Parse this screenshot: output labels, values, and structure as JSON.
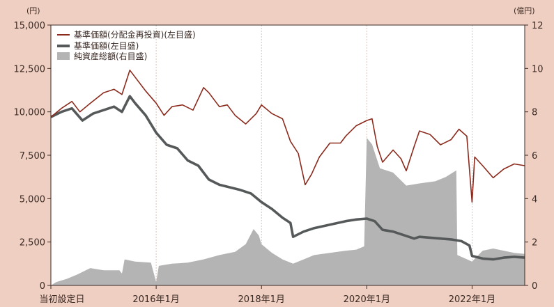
{
  "chart_data": {
    "type": "line",
    "left_unit": "(円)",
    "right_unit": "(億円)",
    "y_left": {
      "min": 0,
      "max": 15000,
      "ticks": [
        "0",
        "2,500",
        "5,000",
        "7,500",
        "10,000",
        "12,500",
        "15,000"
      ]
    },
    "y_right": {
      "min": 0,
      "max": 12,
      "ticks": [
        "0",
        "2",
        "4",
        "6",
        "8",
        "10",
        "12"
      ]
    },
    "x_range": [
      2014.0,
      2023.0
    ],
    "x_ticks": [
      {
        "x": 2014.0,
        "label": "当初設定日"
      },
      {
        "x": 2016.0,
        "label": "2016年1月"
      },
      {
        "x": 2018.0,
        "label": "2018年1月"
      },
      {
        "x": 2020.0,
        "label": "2020年1月"
      },
      {
        "x": 2022.0,
        "label": "2022年1月"
      }
    ],
    "legend": [
      "基準価額(分配金再投資)(左目盛)",
      "基準価額(左目盛)",
      "純資産総額(右目盛)"
    ],
    "series": [
      {
        "axis": "left",
        "color": "#8b2a1c",
        "points": [
          [
            2014.0,
            9700
          ],
          [
            2014.2,
            10200
          ],
          [
            2014.4,
            10600
          ],
          [
            2014.55,
            10000
          ],
          [
            2014.75,
            10500
          ],
          [
            2015.0,
            11100
          ],
          [
            2015.2,
            11300
          ],
          [
            2015.35,
            11000
          ],
          [
            2015.5,
            12400
          ],
          [
            2015.6,
            12000
          ],
          [
            2015.8,
            11200
          ],
          [
            2016.0,
            10500
          ],
          [
            2016.15,
            9800
          ],
          [
            2016.3,
            10300
          ],
          [
            2016.5,
            10400
          ],
          [
            2016.7,
            10100
          ],
          [
            2016.9,
            11400
          ],
          [
            2017.0,
            11100
          ],
          [
            2017.2,
            10300
          ],
          [
            2017.35,
            10400
          ],
          [
            2017.5,
            9800
          ],
          [
            2017.7,
            9300
          ],
          [
            2017.9,
            9900
          ],
          [
            2018.0,
            10400
          ],
          [
            2018.2,
            9900
          ],
          [
            2018.4,
            9600
          ],
          [
            2018.55,
            8300
          ],
          [
            2018.7,
            7600
          ],
          [
            2018.83,
            5800
          ],
          [
            2018.95,
            6400
          ],
          [
            2019.1,
            7400
          ],
          [
            2019.3,
            8200
          ],
          [
            2019.5,
            8200
          ],
          [
            2019.6,
            8600
          ],
          [
            2019.8,
            9200
          ],
          [
            2020.0,
            9500
          ],
          [
            2020.1,
            9600
          ],
          [
            2020.2,
            8000
          ],
          [
            2020.3,
            7100
          ],
          [
            2020.5,
            7800
          ],
          [
            2020.65,
            7300
          ],
          [
            2020.75,
            6600
          ],
          [
            2020.9,
            8000
          ],
          [
            2021.0,
            8900
          ],
          [
            2021.2,
            8700
          ],
          [
            2021.4,
            8100
          ],
          [
            2021.6,
            8400
          ],
          [
            2021.75,
            9000
          ],
          [
            2021.9,
            8600
          ],
          [
            2022.0,
            4800
          ],
          [
            2022.05,
            7400
          ],
          [
            2022.2,
            6900
          ],
          [
            2022.4,
            6200
          ],
          [
            2022.6,
            6700
          ],
          [
            2022.8,
            7000
          ],
          [
            2023.0,
            6900
          ]
        ]
      },
      {
        "axis": "left",
        "color": "#56595a",
        "points": [
          [
            2014.0,
            9700
          ],
          [
            2014.2,
            10000
          ],
          [
            2014.4,
            10200
          ],
          [
            2014.6,
            9500
          ],
          [
            2014.8,
            9900
          ],
          [
            2015.0,
            10100
          ],
          [
            2015.2,
            10300
          ],
          [
            2015.35,
            10000
          ],
          [
            2015.5,
            10900
          ],
          [
            2015.6,
            10500
          ],
          [
            2015.8,
            9800
          ],
          [
            2016.0,
            8800
          ],
          [
            2016.2,
            8100
          ],
          [
            2016.4,
            7900
          ],
          [
            2016.6,
            7200
          ],
          [
            2016.8,
            6900
          ],
          [
            2017.0,
            6100
          ],
          [
            2017.2,
            5800
          ],
          [
            2017.4,
            5650
          ],
          [
            2017.6,
            5500
          ],
          [
            2017.8,
            5300
          ],
          [
            2018.0,
            4800
          ],
          [
            2018.2,
            4400
          ],
          [
            2018.4,
            3900
          ],
          [
            2018.55,
            3600
          ],
          [
            2018.6,
            2800
          ],
          [
            2018.8,
            3100
          ],
          [
            2019.0,
            3300
          ],
          [
            2019.3,
            3500
          ],
          [
            2019.6,
            3700
          ],
          [
            2019.8,
            3800
          ],
          [
            2020.0,
            3850
          ],
          [
            2020.15,
            3700
          ],
          [
            2020.3,
            3200
          ],
          [
            2020.5,
            3100
          ],
          [
            2020.7,
            2900
          ],
          [
            2020.9,
            2700
          ],
          [
            2021.0,
            2800
          ],
          [
            2021.2,
            2750
          ],
          [
            2021.4,
            2700
          ],
          [
            2021.6,
            2650
          ],
          [
            2021.8,
            2550
          ],
          [
            2021.95,
            2300
          ],
          [
            2022.0,
            1700
          ],
          [
            2022.2,
            1550
          ],
          [
            2022.4,
            1500
          ],
          [
            2022.6,
            1600
          ],
          [
            2022.8,
            1650
          ],
          [
            2023.0,
            1600
          ]
        ]
      },
      {
        "axis": "right",
        "type": "area",
        "color": "#b4b4b4",
        "points": [
          [
            2014.0,
            0
          ],
          [
            2014.1,
            0.15
          ],
          [
            2014.3,
            0.3
          ],
          [
            2014.5,
            0.5
          ],
          [
            2014.75,
            0.8
          ],
          [
            2015.0,
            0.7
          ],
          [
            2015.3,
            0.7
          ],
          [
            2015.35,
            0.55
          ],
          [
            2015.4,
            1.2
          ],
          [
            2015.6,
            1.1
          ],
          [
            2015.9,
            1.05
          ],
          [
            2016.0,
            0.15
          ],
          [
            2016.05,
            0.9
          ],
          [
            2016.3,
            1.0
          ],
          [
            2016.6,
            1.05
          ],
          [
            2016.9,
            1.2
          ],
          [
            2017.2,
            1.4
          ],
          [
            2017.5,
            1.55
          ],
          [
            2017.7,
            1.9
          ],
          [
            2017.85,
            2.6
          ],
          [
            2017.95,
            2.3
          ],
          [
            2018.0,
            1.9
          ],
          [
            2018.2,
            1.5
          ],
          [
            2018.4,
            1.2
          ],
          [
            2018.6,
            1.0
          ],
          [
            2018.8,
            1.2
          ],
          [
            2019.0,
            1.4
          ],
          [
            2019.3,
            1.5
          ],
          [
            2019.6,
            1.6
          ],
          [
            2019.8,
            1.65
          ],
          [
            2019.95,
            1.8
          ],
          [
            2020.0,
            6.8
          ],
          [
            2020.1,
            6.5
          ],
          [
            2020.25,
            5.4
          ],
          [
            2020.5,
            5.2
          ],
          [
            2020.75,
            4.6
          ],
          [
            2021.0,
            4.7
          ],
          [
            2021.3,
            4.8
          ],
          [
            2021.5,
            5.0
          ],
          [
            2021.7,
            5.3
          ],
          [
            2021.72,
            1.4
          ],
          [
            2022.0,
            1.1
          ],
          [
            2022.2,
            1.6
          ],
          [
            2022.4,
            1.7
          ],
          [
            2022.6,
            1.6
          ],
          [
            2022.8,
            1.5
          ],
          [
            2023.0,
            1.45
          ]
        ]
      }
    ]
  }
}
